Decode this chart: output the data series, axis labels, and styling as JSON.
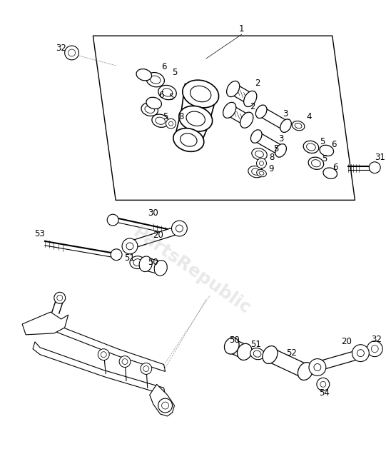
{
  "background_color": "#ffffff",
  "line_color": "#000000",
  "watermark_text": "PartsRepublic",
  "watermark_color": "#c0c0c0",
  "watermark_alpha": 0.35,
  "fig_width": 5.41,
  "fig_height": 6.5,
  "dpi": 100
}
